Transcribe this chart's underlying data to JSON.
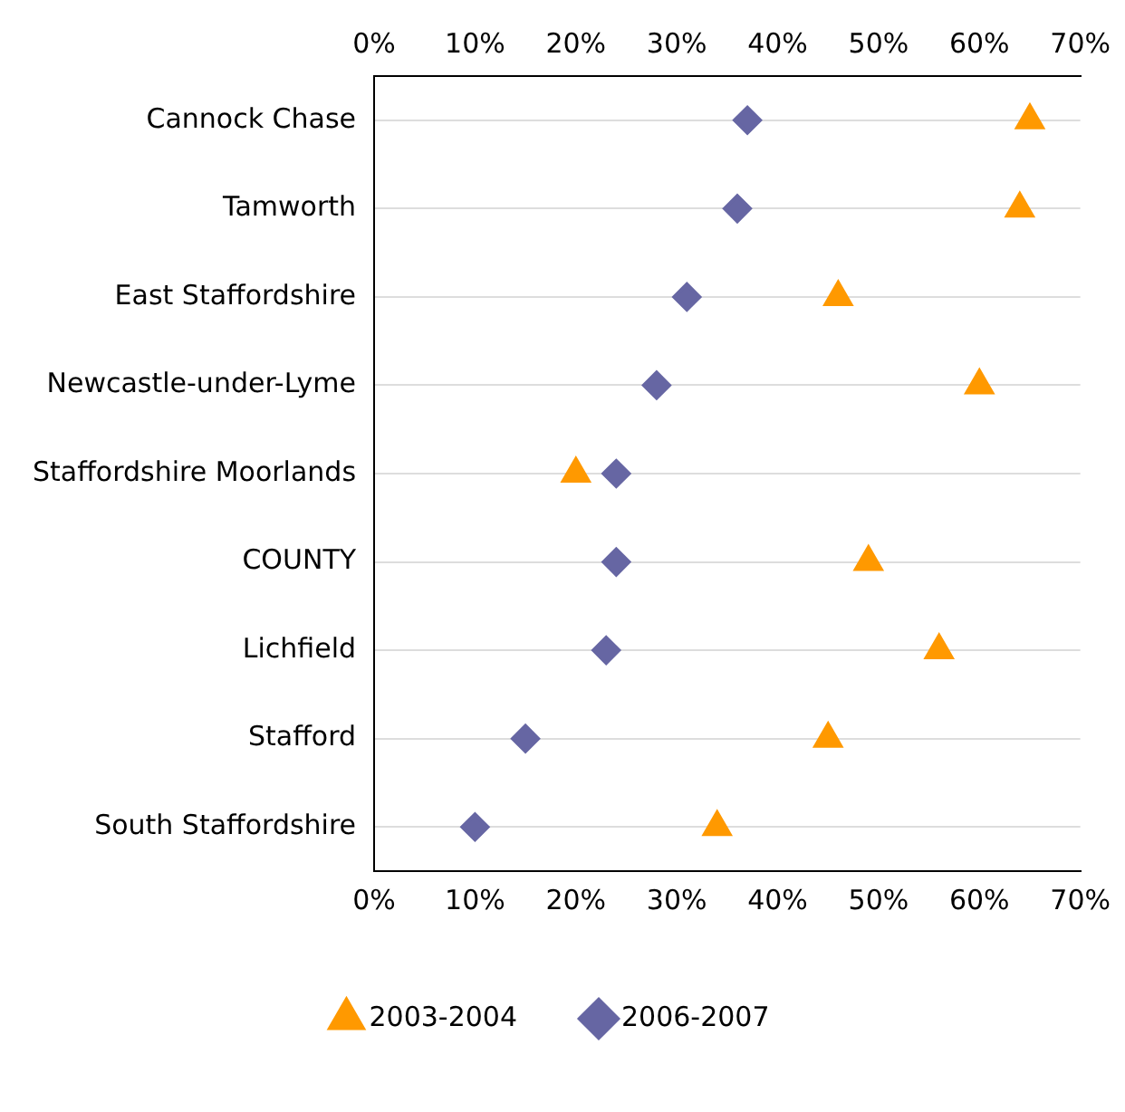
{
  "chart_data": {
    "type": "scatter",
    "orientation": "horizontal",
    "categories": [
      "Cannock Chase",
      "Tamworth",
      "East Staffordshire",
      "Newcastle-under-Lyme",
      "Staffordshire Moorlands",
      "COUNTY",
      "Lichfield",
      "Stafford",
      "South Staffordshire"
    ],
    "series": [
      {
        "name": "2003-2004",
        "color": "#ff9900",
        "marker": "triangle",
        "values": [
          65,
          64,
          46,
          60,
          20,
          49,
          56,
          45,
          34
        ]
      },
      {
        "name": "2006-2007",
        "color": "#6666a3",
        "marker": "diamond",
        "values": [
          37,
          36,
          31,
          28,
          24,
          24,
          23,
          15,
          10
        ]
      }
    ],
    "xlim": [
      0,
      70
    ],
    "xticks": [
      {
        "value": 0,
        "label": "0%"
      },
      {
        "value": 10,
        "label": "10%"
      },
      {
        "value": 20,
        "label": "20%"
      },
      {
        "value": 30,
        "label": "30%"
      },
      {
        "value": 40,
        "label": "40%"
      },
      {
        "value": 50,
        "label": "50%"
      },
      {
        "value": 60,
        "label": "60%"
      },
      {
        "value": 70,
        "label": "70%"
      }
    ],
    "x2lim": [
      0,
      70
    ],
    "x2ticks": [
      {
        "value": 0,
        "label": "0%"
      },
      {
        "value": 10,
        "label": "10%"
      },
      {
        "value": 20,
        "label": "20%"
      },
      {
        "value": 30,
        "label": "30%"
      },
      {
        "value": 40,
        "label": "40%"
      },
      {
        "value": 50,
        "label": "50%"
      },
      {
        "value": 60,
        "label": "60%"
      },
      {
        "value": 70,
        "label": "70%"
      }
    ],
    "grid": "y",
    "legend": "bottom"
  }
}
